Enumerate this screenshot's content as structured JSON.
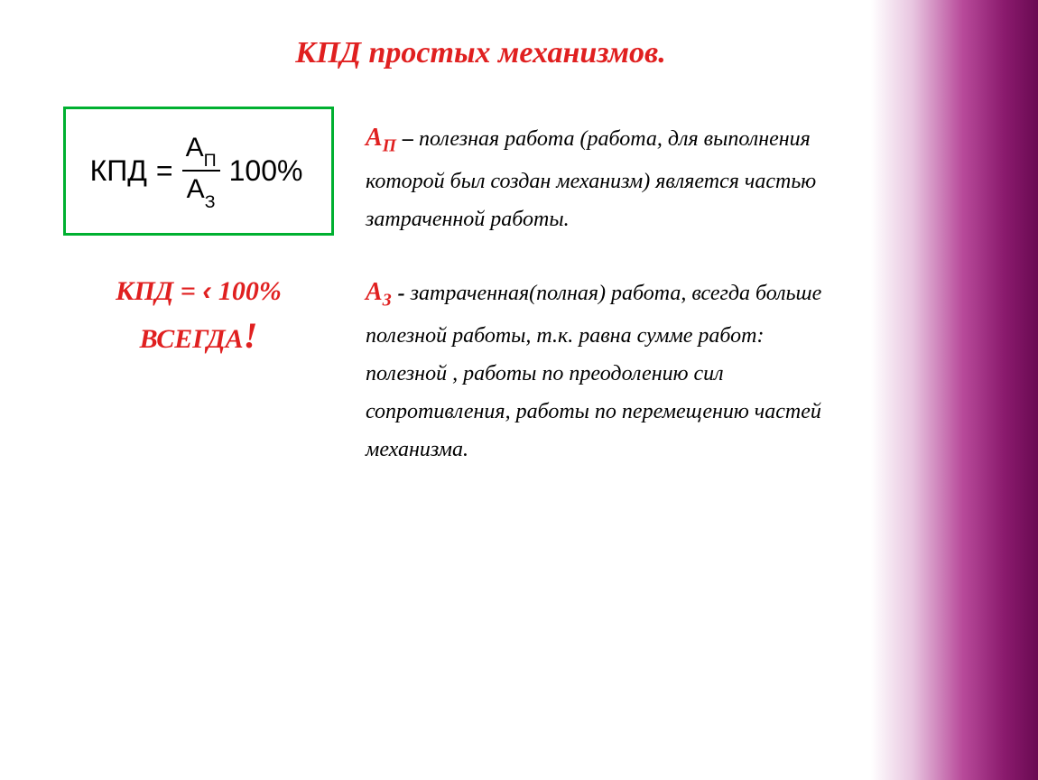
{
  "colors": {
    "title_red": "#e02020",
    "formula_border": "#00b030",
    "note_red": "#e02020",
    "symbol_red": "#e02020",
    "text_black": "#000000",
    "gradient_start": "#ffffff",
    "gradient_mid": "#b84a9a",
    "gradient_end": "#6a0a52"
  },
  "typography": {
    "title_size": 34,
    "formula_size": 32,
    "note_size": 30,
    "def_size": 24,
    "always_size": 30
  },
  "title": "КПД простых механизмов.",
  "formula": {
    "lhs": "КПД",
    "eq": "=",
    "numerator_base": "А",
    "numerator_sub": "П",
    "denominator_base": "А",
    "denominator_sub": "З",
    "pct": "100%"
  },
  "note": {
    "kpd_label": "КПД",
    "eq": "=",
    "sign": "‹",
    "value": "100%",
    "always": "ВСЕГДА",
    "exclam": "!"
  },
  "def_ap": {
    "symbol_base": "А",
    "symbol_sub": "П",
    "dash": " – ",
    "text": "полезная работа (работа, для выполнения которой был создан механизм) является частью затраченной работы."
  },
  "def_az": {
    "symbol_base": "А",
    "symbol_sub": "З",
    "dash": "- ",
    "text": "затраченная(полная) работа, всегда больше полезной работы, т.к. равна сумме работ: полезной , работы по преодолению сил сопротивления,  работы по перемещению частей механизма."
  }
}
